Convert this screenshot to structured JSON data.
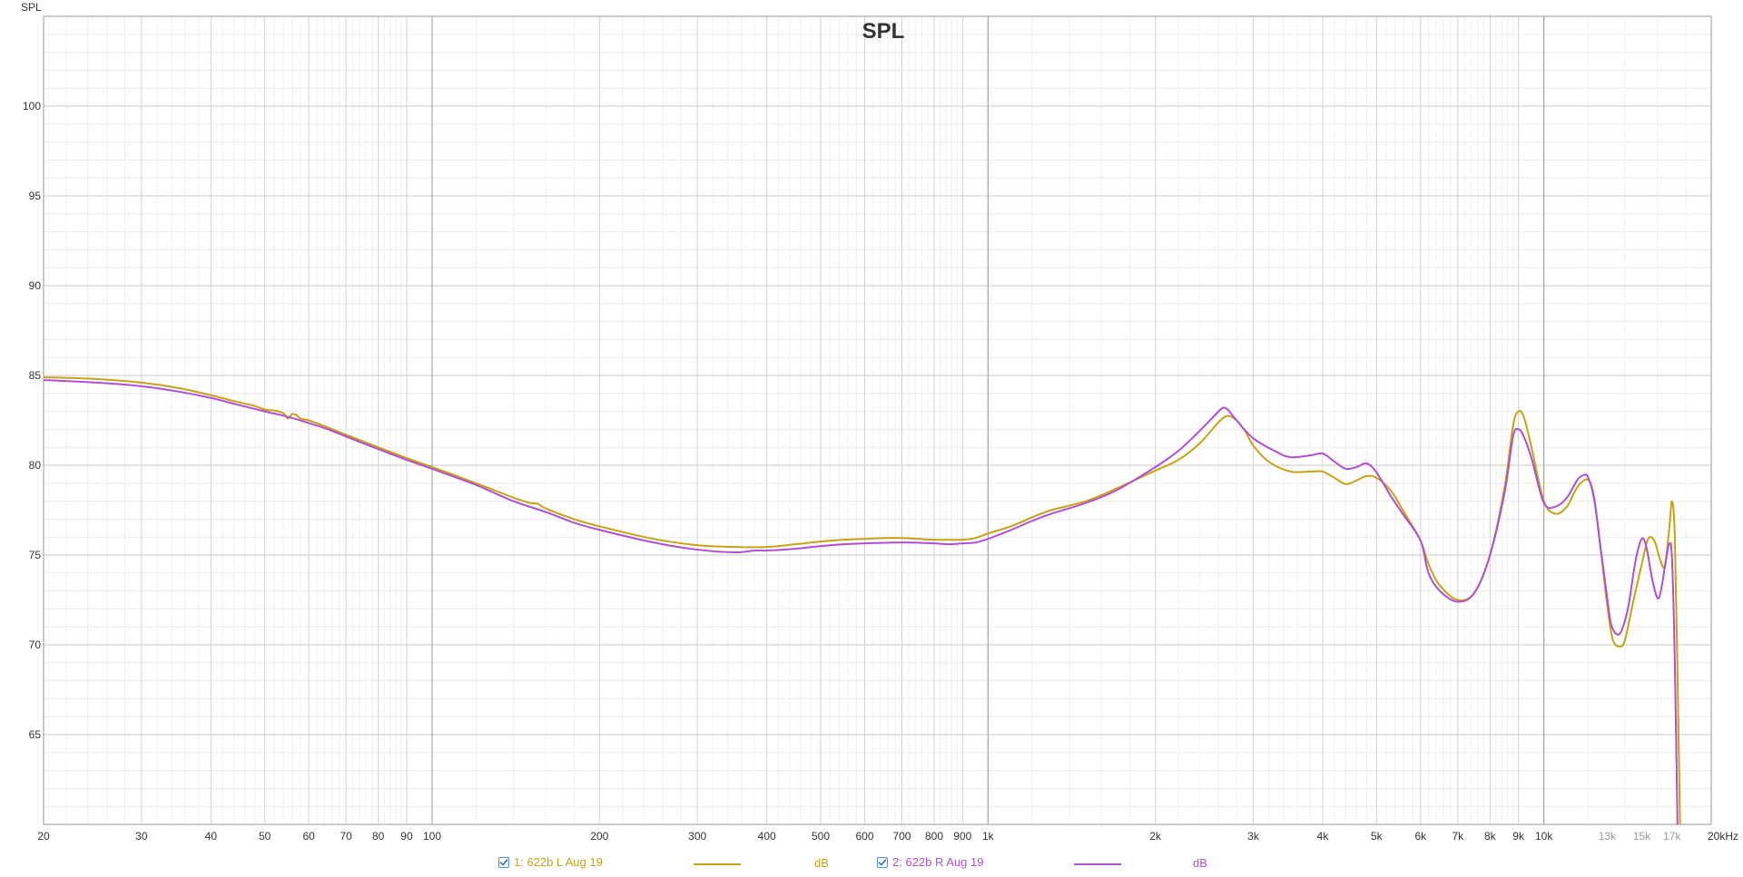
{
  "chart_data": {
    "type": "line",
    "title": "SPL",
    "ylabel": "SPL",
    "xlabel": "",
    "x_scale": "log",
    "xlim": [
      20,
      20000
    ],
    "ylim": [
      60,
      105
    ],
    "grid": true,
    "x_ticks": [
      {
        "value": 20,
        "label": "20"
      },
      {
        "value": 30,
        "label": "30"
      },
      {
        "value": 40,
        "label": "40"
      },
      {
        "value": 50,
        "label": "50"
      },
      {
        "value": 60,
        "label": "60"
      },
      {
        "value": 70,
        "label": "70"
      },
      {
        "value": 80,
        "label": "80"
      },
      {
        "value": 90,
        "label": "90"
      },
      {
        "value": 100,
        "label": "100"
      },
      {
        "value": 200,
        "label": "200"
      },
      {
        "value": 300,
        "label": "300"
      },
      {
        "value": 400,
        "label": "400"
      },
      {
        "value": 500,
        "label": "500"
      },
      {
        "value": 600,
        "label": "600"
      },
      {
        "value": 700,
        "label": "700"
      },
      {
        "value": 800,
        "label": "800"
      },
      {
        "value": 900,
        "label": "900"
      },
      {
        "value": 1000,
        "label": "1k"
      },
      {
        "value": 2000,
        "label": "2k"
      },
      {
        "value": 3000,
        "label": "3k"
      },
      {
        "value": 4000,
        "label": "4k"
      },
      {
        "value": 5000,
        "label": "5k"
      },
      {
        "value": 6000,
        "label": "6k"
      },
      {
        "value": 7000,
        "label": "7k"
      },
      {
        "value": 8000,
        "label": "8k"
      },
      {
        "value": 9000,
        "label": "9k"
      },
      {
        "value": 10000,
        "label": "10k"
      },
      {
        "value": 13000,
        "label": "13k",
        "dim": true
      },
      {
        "value": 15000,
        "label": "15k",
        "dim": true
      },
      {
        "value": 17000,
        "label": "17k",
        "dim": true
      },
      {
        "value": 20000,
        "label": "20kHz"
      }
    ],
    "y_ticks": [
      {
        "value": 65,
        "label": "65"
      },
      {
        "value": 70,
        "label": "70"
      },
      {
        "value": 75,
        "label": "75"
      },
      {
        "value": 80,
        "label": "80"
      },
      {
        "value": 85,
        "label": "85"
      },
      {
        "value": 90,
        "label": "90"
      },
      {
        "value": 95,
        "label": "95"
      },
      {
        "value": 100,
        "label": "100"
      }
    ],
    "series": [
      {
        "name": "1: 622b L Aug 19",
        "unit": "dB",
        "color": "#c9a114",
        "checked": true,
        "points": [
          [
            20,
            84.9
          ],
          [
            25,
            84.8
          ],
          [
            30,
            84.6
          ],
          [
            35,
            84.3
          ],
          [
            40,
            83.9
          ],
          [
            45,
            83.5
          ],
          [
            48,
            83.3
          ],
          [
            50,
            83.1
          ],
          [
            52,
            83.05
          ],
          [
            54,
            82.9
          ],
          [
            55,
            82.6
          ],
          [
            56,
            82.85
          ],
          [
            57,
            82.8
          ],
          [
            58,
            82.6
          ],
          [
            60,
            82.5
          ],
          [
            65,
            82.1
          ],
          [
            70,
            81.7
          ],
          [
            80,
            81.0
          ],
          [
            90,
            80.4
          ],
          [
            100,
            79.9
          ],
          [
            120,
            79.0
          ],
          [
            140,
            78.2
          ],
          [
            150,
            77.9
          ],
          [
            155,
            77.85
          ],
          [
            160,
            77.6
          ],
          [
            180,
            77.0
          ],
          [
            200,
            76.6
          ],
          [
            250,
            75.9
          ],
          [
            300,
            75.55
          ],
          [
            350,
            75.45
          ],
          [
            400,
            75.45
          ],
          [
            450,
            75.6
          ],
          [
            500,
            75.75
          ],
          [
            550,
            75.85
          ],
          [
            600,
            75.9
          ],
          [
            650,
            75.95
          ],
          [
            700,
            75.95
          ],
          [
            750,
            75.9
          ],
          [
            800,
            75.85
          ],
          [
            850,
            75.85
          ],
          [
            900,
            75.85
          ],
          [
            950,
            75.95
          ],
          [
            1000,
            76.2
          ],
          [
            1100,
            76.6
          ],
          [
            1200,
            77.1
          ],
          [
            1300,
            77.5
          ],
          [
            1500,
            78.0
          ],
          [
            1700,
            78.7
          ],
          [
            2000,
            79.7
          ],
          [
            2200,
            80.3
          ],
          [
            2400,
            81.2
          ],
          [
            2600,
            82.4
          ],
          [
            2700,
            82.75
          ],
          [
            2800,
            82.5
          ],
          [
            2900,
            81.9
          ],
          [
            3000,
            81.1
          ],
          [
            3200,
            80.2
          ],
          [
            3500,
            79.65
          ],
          [
            3800,
            79.65
          ],
          [
            4000,
            79.65
          ],
          [
            4200,
            79.3
          ],
          [
            4400,
            78.95
          ],
          [
            4600,
            79.15
          ],
          [
            4800,
            79.4
          ],
          [
            5000,
            79.3
          ],
          [
            5300,
            78.6
          ],
          [
            5600,
            77.4
          ],
          [
            6000,
            75.8
          ],
          [
            6200,
            74.5
          ],
          [
            6500,
            73.3
          ],
          [
            7000,
            72.5
          ],
          [
            7500,
            72.9
          ],
          [
            8000,
            75.0
          ],
          [
            8500,
            78.8
          ],
          [
            8800,
            82.2
          ],
          [
            9000,
            83.0
          ],
          [
            9200,
            82.7
          ],
          [
            9500,
            81.0
          ],
          [
            10000,
            78.0
          ],
          [
            10500,
            77.3
          ],
          [
            11000,
            77.7
          ],
          [
            11500,
            78.8
          ],
          [
            12000,
            79.2
          ],
          [
            12300,
            78.3
          ],
          [
            12600,
            75.8
          ],
          [
            13000,
            72.2
          ],
          [
            13300,
            70.3
          ],
          [
            13700,
            69.9
          ],
          [
            14000,
            70.3
          ],
          [
            14500,
            72.5
          ],
          [
            15000,
            74.5
          ],
          [
            15400,
            75.9
          ],
          [
            15800,
            75.8
          ],
          [
            16200,
            74.7
          ],
          [
            16500,
            74.4
          ],
          [
            16800,
            76.4
          ],
          [
            17000,
            78.0
          ],
          [
            17200,
            76.0
          ],
          [
            17400,
            68.0
          ],
          [
            17600,
            59.0
          ]
        ]
      },
      {
        "name": "2: 622b R Aug 19",
        "unit": "dB",
        "color": "#b04fd4",
        "checked": true,
        "points": [
          [
            20,
            84.75
          ],
          [
            25,
            84.6
          ],
          [
            30,
            84.4
          ],
          [
            35,
            84.1
          ],
          [
            40,
            83.75
          ],
          [
            45,
            83.35
          ],
          [
            50,
            83.0
          ],
          [
            55,
            82.7
          ],
          [
            60,
            82.35
          ],
          [
            65,
            82.0
          ],
          [
            70,
            81.6
          ],
          [
            80,
            80.9
          ],
          [
            90,
            80.3
          ],
          [
            100,
            79.8
          ],
          [
            120,
            78.9
          ],
          [
            140,
            78.0
          ],
          [
            160,
            77.4
          ],
          [
            180,
            76.8
          ],
          [
            200,
            76.4
          ],
          [
            250,
            75.7
          ],
          [
            300,
            75.3
          ],
          [
            350,
            75.15
          ],
          [
            380,
            75.25
          ],
          [
            400,
            75.25
          ],
          [
            450,
            75.35
          ],
          [
            500,
            75.5
          ],
          [
            550,
            75.6
          ],
          [
            600,
            75.65
          ],
          [
            700,
            75.7
          ],
          [
            800,
            75.65
          ],
          [
            850,
            75.6
          ],
          [
            900,
            75.65
          ],
          [
            950,
            75.7
          ],
          [
            1000,
            75.9
          ],
          [
            1100,
            76.4
          ],
          [
            1200,
            76.9
          ],
          [
            1300,
            77.3
          ],
          [
            1500,
            77.9
          ],
          [
            1700,
            78.6
          ],
          [
            2000,
            79.9
          ],
          [
            2200,
            80.8
          ],
          [
            2400,
            81.9
          ],
          [
            2600,
            83.0
          ],
          [
            2650,
            83.2
          ],
          [
            2700,
            83.1
          ],
          [
            2800,
            82.5
          ],
          [
            3000,
            81.5
          ],
          [
            3300,
            80.75
          ],
          [
            3500,
            80.45
          ],
          [
            3800,
            80.55
          ],
          [
            4000,
            80.65
          ],
          [
            4200,
            80.2
          ],
          [
            4400,
            79.8
          ],
          [
            4600,
            79.9
          ],
          [
            4800,
            80.1
          ],
          [
            5000,
            79.6
          ],
          [
            5300,
            78.3
          ],
          [
            5600,
            77.2
          ],
          [
            6000,
            75.8
          ],
          [
            6200,
            74.0
          ],
          [
            6500,
            73.0
          ],
          [
            7000,
            72.4
          ],
          [
            7500,
            72.9
          ],
          [
            8000,
            75.0
          ],
          [
            8500,
            78.5
          ],
          [
            8800,
            81.6
          ],
          [
            9000,
            82.0
          ],
          [
            9200,
            81.6
          ],
          [
            9500,
            80.4
          ],
          [
            10000,
            77.9
          ],
          [
            10500,
            77.7
          ],
          [
            11000,
            78.2
          ],
          [
            11500,
            79.2
          ],
          [
            11800,
            79.45
          ],
          [
            12000,
            79.35
          ],
          [
            12300,
            78.2
          ],
          [
            12600,
            75.8
          ],
          [
            13000,
            72.6
          ],
          [
            13200,
            71.2
          ],
          [
            13500,
            70.6
          ],
          [
            13800,
            70.8
          ],
          [
            14200,
            72.2
          ],
          [
            14600,
            74.6
          ],
          [
            15000,
            75.9
          ],
          [
            15300,
            75.4
          ],
          [
            15700,
            73.5
          ],
          [
            16100,
            72.6
          ],
          [
            16500,
            74.3
          ],
          [
            16800,
            75.6
          ],
          [
            17000,
            74.8
          ],
          [
            17200,
            69.0
          ],
          [
            17400,
            59.5
          ]
        ]
      }
    ]
  }
}
